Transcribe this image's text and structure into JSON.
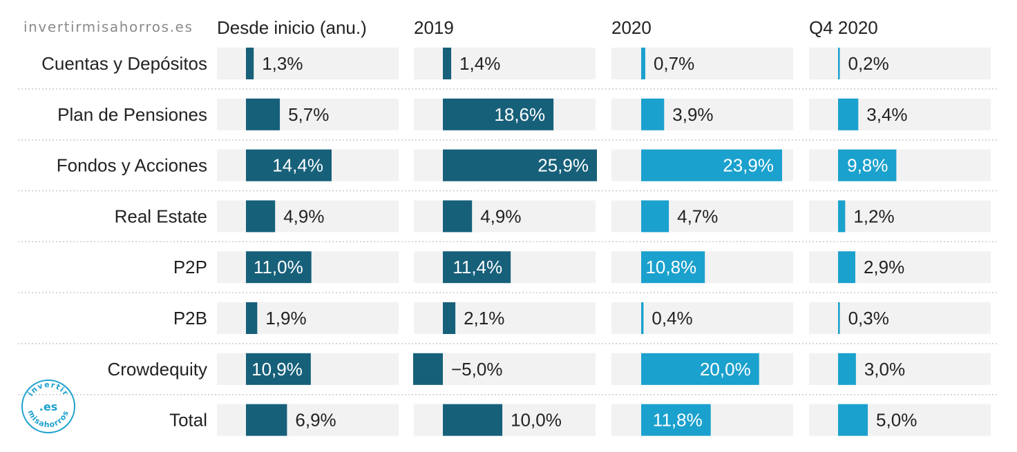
{
  "watermark": "invertirmisahorros.es",
  "logo": {
    "top_text": "invertir",
    "center_text": ".es",
    "bottom_text": "misahorros"
  },
  "colors": {
    "dark": "#17607a",
    "light": "#1ba1cd",
    "track": "#f2f2f2",
    "separator": "#c9c9c9",
    "text": "#222222"
  },
  "chart_data": {
    "type": "bar",
    "categories": [
      "Cuentas y Depósitos",
      "Plan de Pensiones",
      "Fondos y Acciones",
      "Real Estate",
      "P2P",
      "P2B",
      "Crowdequity",
      "Total"
    ],
    "series": [
      {
        "name": "Desde inicio (anu.)",
        "color": "#17607a",
        "xlim": [
          0,
          25.9
        ],
        "values": [
          1.3,
          5.7,
          14.4,
          4.9,
          11.0,
          1.9,
          10.9,
          6.9
        ],
        "labels": [
          "1,3%",
          "5,7%",
          "14,4%",
          "4,9%",
          "11,0%",
          "1,9%",
          "10,9%",
          "6,9%"
        ]
      },
      {
        "name": "2019",
        "color": "#17607a",
        "xlim": [
          -5.0,
          25.9
        ],
        "values": [
          1.4,
          18.6,
          25.9,
          4.9,
          11.4,
          2.1,
          -5.0,
          10.0
        ],
        "labels": [
          "1,4%",
          "18,6%",
          "25,9%",
          "4,9%",
          "11,4%",
          "2,1%",
          "−5,0%",
          "10,0%"
        ]
      },
      {
        "name": "2020",
        "color": "#1ba1cd",
        "xlim": [
          0,
          23.9
        ],
        "values": [
          0.7,
          3.9,
          23.9,
          4.7,
          10.8,
          0.4,
          20.0,
          11.8
        ],
        "labels": [
          "0,7%",
          "3,9%",
          "23,9%",
          "4,7%",
          "10,8%",
          "0,4%",
          "20,0%",
          "11,8%"
        ]
      },
      {
        "name": "Q4 2020",
        "color": "#1ba1cd",
        "xlim": [
          0,
          25.9
        ],
        "values": [
          0.2,
          3.4,
          9.8,
          1.2,
          2.9,
          0.3,
          3.0,
          5.0
        ],
        "labels": [
          "0,2%",
          "3,4%",
          "9,8%",
          "1,2%",
          "2,9%",
          "0,3%",
          "3,0%",
          "5,0%"
        ]
      }
    ]
  }
}
